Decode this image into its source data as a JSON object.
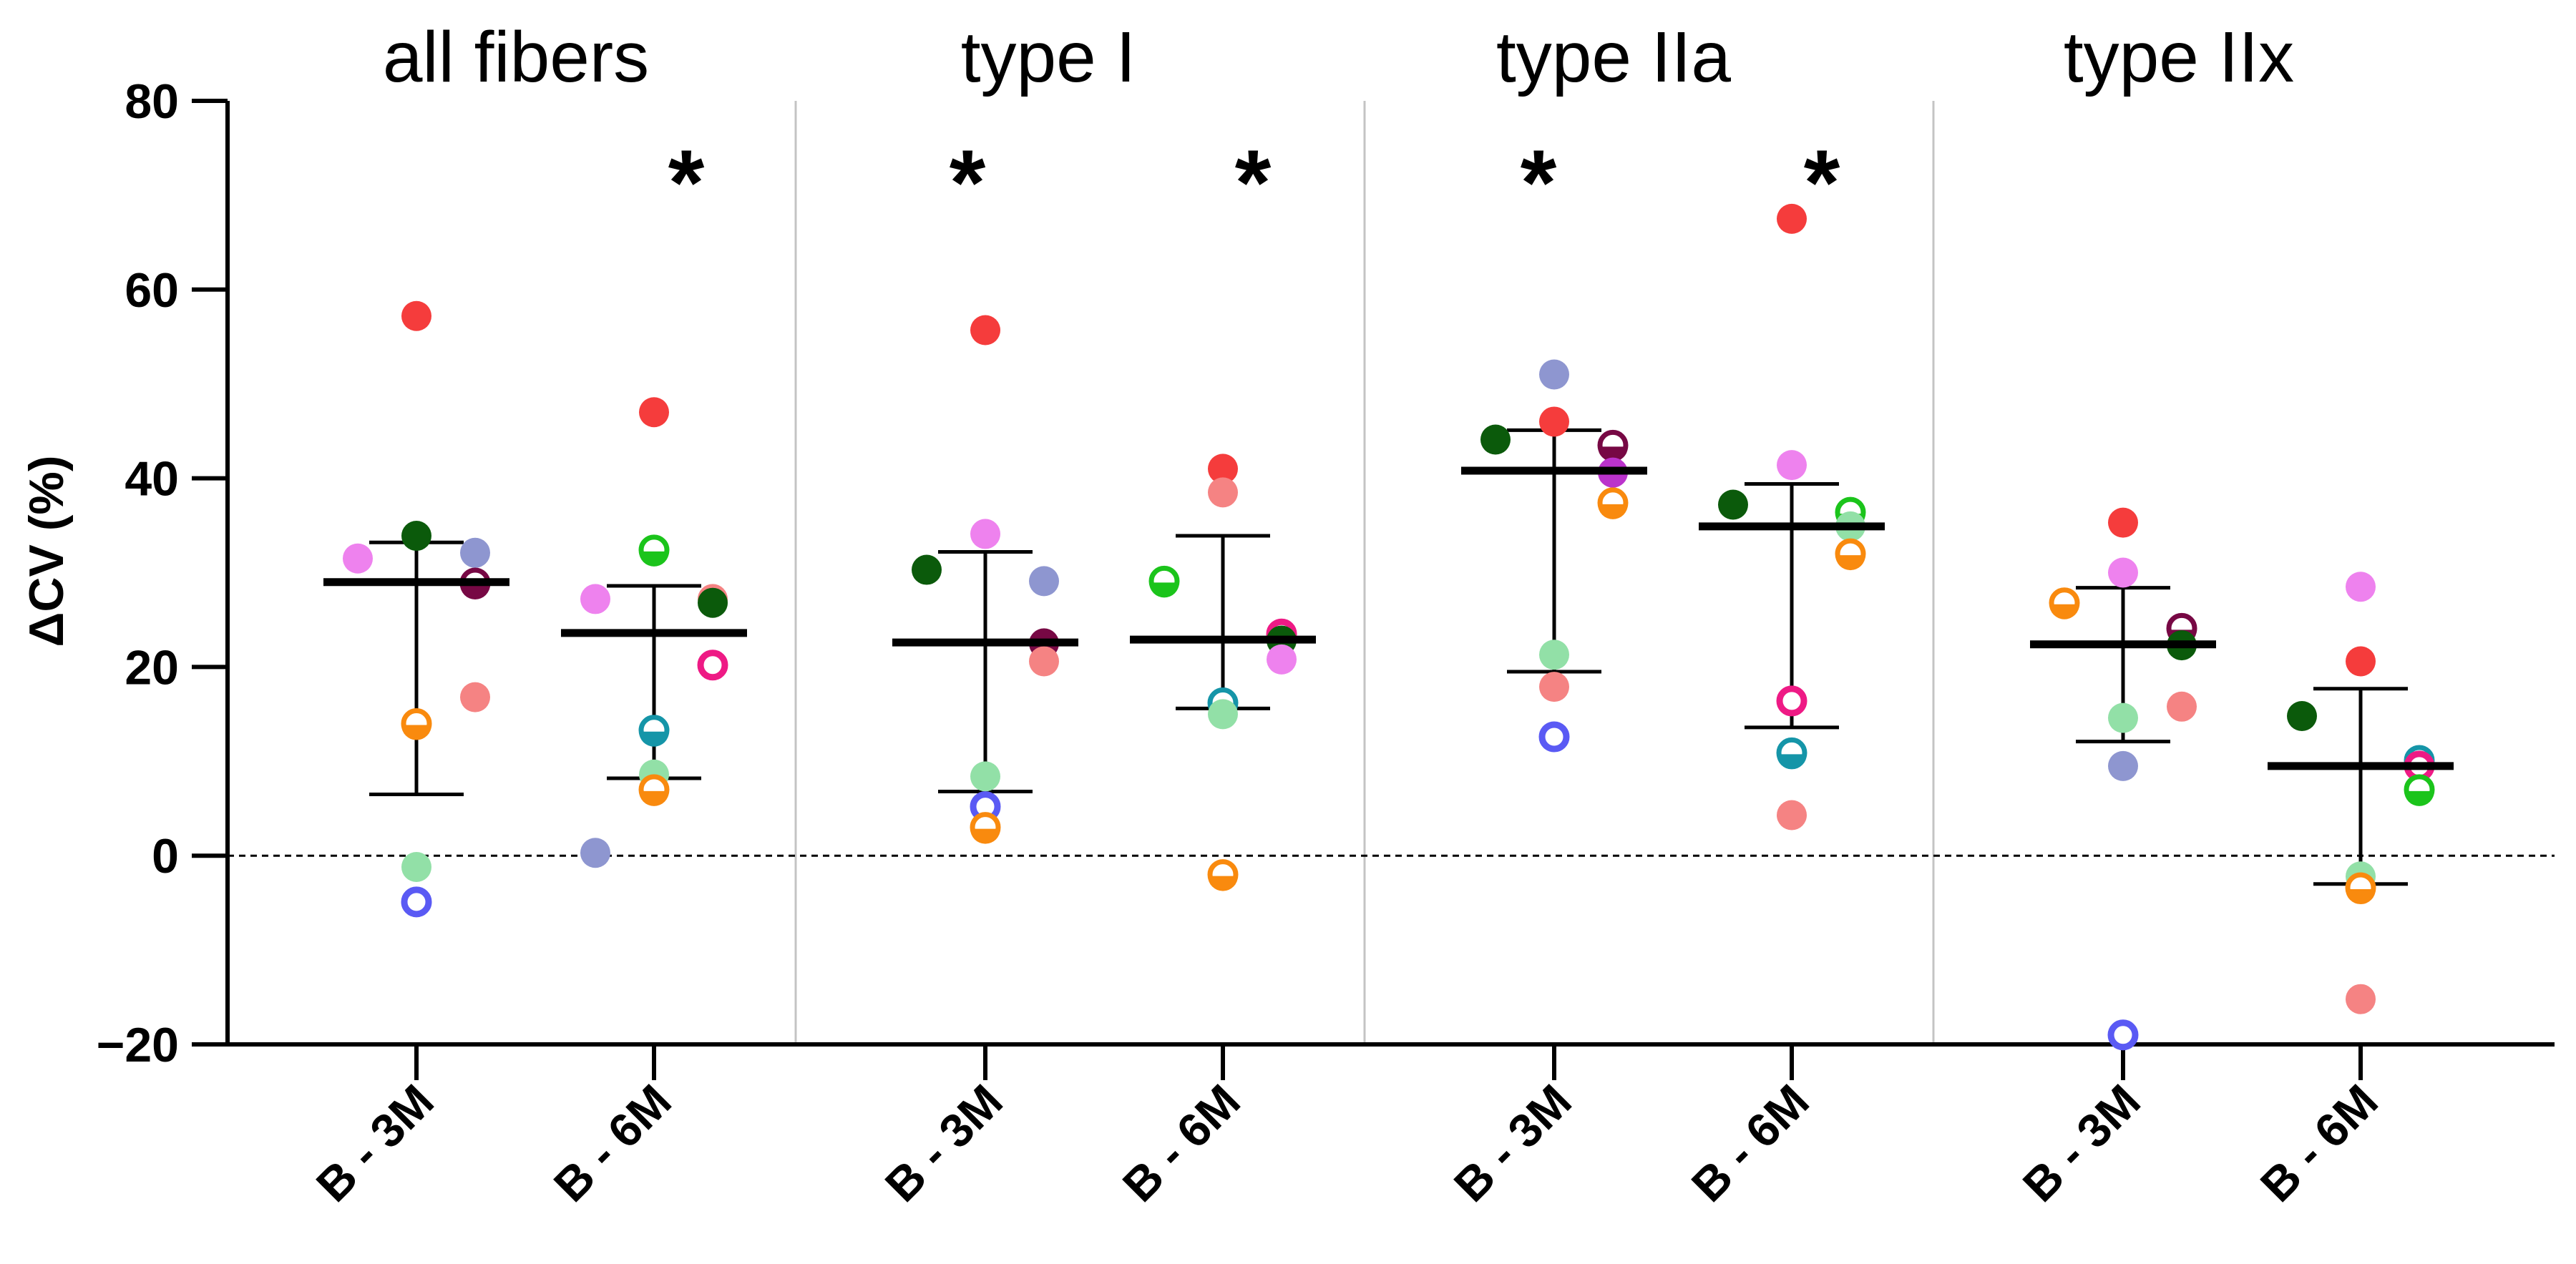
{
  "chart_data": {
    "type": "scatter",
    "ylabel": "ΔCV (%)",
    "ylim": [
      -20,
      80
    ],
    "yticks": [
      -20,
      0,
      20,
      40,
      60,
      80
    ],
    "ytick_labels": [
      "−20",
      "0",
      "20",
      "40",
      "60",
      "80"
    ],
    "reference_line": 0,
    "groups": [
      {
        "title": "all fibers",
        "comparisons": [
          {
            "label": "B - 3M",
            "significant": false,
            "mean": 29,
            "error_low": 6.5,
            "error_high": 33.2,
            "points": [
              {
                "y": 57.2,
                "color": "#f53c3c",
                "style": "filled"
              },
              {
                "y": 33.9,
                "color": "#0b5a0b",
                "style": "filled"
              },
              {
                "y": 31.5,
                "color": "#ee82ee",
                "style": "filled"
              },
              {
                "y": 32.1,
                "color": "#8e96d0",
                "style": "filled"
              },
              {
                "y": 28.9,
                "color": "#770844",
                "style": "half"
              },
              {
                "y": 16.8,
                "color": "#f58383",
                "style": "filled"
              },
              {
                "y": 14,
                "color": "#f98a0e",
                "style": "half"
              },
              {
                "y": -1.2,
                "color": "#92e0a7",
                "style": "filled"
              },
              {
                "y": -4.9,
                "color": "#5a5af4",
                "style": "ring"
              }
            ]
          },
          {
            "label": "B - 6M",
            "significant": true,
            "mean": 23.6,
            "error_low": 8.2,
            "error_high": 28.6,
            "points": [
              {
                "y": 47,
                "color": "#f53c3c",
                "style": "filled"
              },
              {
                "y": 32.4,
                "color": "#1bc41b",
                "style": "half"
              },
              {
                "y": 27.2,
                "color": "#ee82ee",
                "style": "filled"
              },
              {
                "y": 27.2,
                "color": "#f58383",
                "style": "filled"
              },
              {
                "y": 26.8,
                "color": "#0b5a0b",
                "style": "filled"
              },
              {
                "y": 20.2,
                "color": "#ee1a85",
                "style": "ring"
              },
              {
                "y": 13.3,
                "color": "#1595a8",
                "style": "half"
              },
              {
                "y": 8.6,
                "color": "#92e0a7",
                "style": "filled"
              },
              {
                "y": 7,
                "color": "#f98a0e",
                "style": "half"
              },
              {
                "y": 0.3,
                "color": "#8e96d0",
                "style": "filled"
              }
            ]
          }
        ]
      },
      {
        "title": "type I",
        "comparisons": [
          {
            "label": "B - 3M",
            "significant": true,
            "mean": 22.6,
            "error_low": 6.8,
            "error_high": 32.2,
            "points": [
              {
                "y": 55.7,
                "color": "#f53c3c",
                "style": "filled"
              },
              {
                "y": 34.1,
                "color": "#ee82ee",
                "style": "filled"
              },
              {
                "y": 30.3,
                "color": "#0b5a0b",
                "style": "filled"
              },
              {
                "y": 29.1,
                "color": "#8e96d0",
                "style": "filled"
              },
              {
                "y": 22.5,
                "color": "#770844",
                "style": "filled"
              },
              {
                "y": 20.6,
                "color": "#f58383",
                "style": "filled"
              },
              {
                "y": 8.4,
                "color": "#92e0a7",
                "style": "filled"
              },
              {
                "y": 5.2,
                "color": "#5a5af4",
                "style": "ring"
              },
              {
                "y": 3,
                "color": "#f98a0e",
                "style": "half"
              }
            ]
          },
          {
            "label": "B - 6M",
            "significant": true,
            "mean": 22.9,
            "error_low": 15.6,
            "error_high": 33.9,
            "points": [
              {
                "y": 41,
                "color": "#f53c3c",
                "style": "filled"
              },
              {
                "y": 38.5,
                "color": "#f58383",
                "style": "filled"
              },
              {
                "y": 29.1,
                "color": "#1bc41b",
                "style": "half"
              },
              {
                "y": 23.5,
                "color": "#ee1a85",
                "style": "ring"
              },
              {
                "y": 22.8,
                "color": "#0b5a0b",
                "style": "filled"
              },
              {
                "y": 20.8,
                "color": "#ee82ee",
                "style": "filled"
              },
              {
                "y": 16.2,
                "color": "#1595a8",
                "style": "half"
              },
              {
                "y": 15,
                "color": "#92e0a7",
                "style": "filled"
              },
              {
                "y": -2,
                "color": "#f98a0e",
                "style": "half"
              }
            ]
          }
        ]
      },
      {
        "title": "type IIa",
        "comparisons": [
          {
            "label": "B - 3M",
            "significant": true,
            "mean": 40.8,
            "error_low": 19.5,
            "error_high": 45.1,
            "points": [
              {
                "y": 51,
                "color": "#8e96d0",
                "style": "filled"
              },
              {
                "y": 46,
                "color": "#f53c3c",
                "style": "filled"
              },
              {
                "y": 44.1,
                "color": "#0b5a0b",
                "style": "filled"
              },
              {
                "y": 43.5,
                "color": "#770844",
                "style": "half"
              },
              {
                "y": 40.6,
                "color": "#bb33cc",
                "style": "filled"
              },
              {
                "y": 37.4,
                "color": "#f98a0e",
                "style": "half"
              },
              {
                "y": 21.3,
                "color": "#92e0a7",
                "style": "filled"
              },
              {
                "y": 17.9,
                "color": "#f58383",
                "style": "filled"
              },
              {
                "y": 12.6,
                "color": "#5a5af4",
                "style": "ring"
              }
            ]
          },
          {
            "label": "B - 6M",
            "significant": true,
            "mean": 34.9,
            "error_low": 13.6,
            "error_high": 39.4,
            "points": [
              {
                "y": 67.5,
                "color": "#f53c3c",
                "style": "filled"
              },
              {
                "y": 41.4,
                "color": "#ee82ee",
                "style": "filled"
              },
              {
                "y": 37.2,
                "color": "#0b5a0b",
                "style": "filled"
              },
              {
                "y": 36.4,
                "color": "#1bc41b",
                "style": "half"
              },
              {
                "y": 34.9,
                "color": "#92e0a7",
                "style": "filled"
              },
              {
                "y": 32,
                "color": "#f98a0e",
                "style": "half"
              },
              {
                "y": 16.4,
                "color": "#ee1a85",
                "style": "ring"
              },
              {
                "y": 10.9,
                "color": "#1595a8",
                "style": "half"
              },
              {
                "y": 4.3,
                "color": "#f58383",
                "style": "filled"
              }
            ]
          }
        ]
      },
      {
        "title": "type IIx",
        "comparisons": [
          {
            "label": "B - 3M",
            "significant": false,
            "mean": 22.4,
            "error_low": 12.1,
            "error_high": 28.4,
            "points": [
              {
                "y": 35.3,
                "color": "#f53c3c",
                "style": "filled"
              },
              {
                "y": 30,
                "color": "#ee82ee",
                "style": "filled"
              },
              {
                "y": 26.8,
                "color": "#f98a0e",
                "style": "half"
              },
              {
                "y": 24.1,
                "color": "#770844",
                "style": "half"
              },
              {
                "y": 22.3,
                "color": "#0b5a0b",
                "style": "filled"
              },
              {
                "y": 15.8,
                "color": "#f58383",
                "style": "filled"
              },
              {
                "y": 14.6,
                "color": "#92e0a7",
                "style": "filled"
              },
              {
                "y": 9.5,
                "color": "#8e96d0",
                "style": "filled"
              },
              {
                "y": -19,
                "color": "#5a5af4",
                "style": "ring"
              }
            ]
          },
          {
            "label": "B - 6M",
            "significant": false,
            "mean": 9.5,
            "error_low": -3,
            "error_high": 17.7,
            "points": [
              {
                "y": 28.5,
                "color": "#ee82ee",
                "style": "filled"
              },
              {
                "y": 20.6,
                "color": "#f53c3c",
                "style": "filled"
              },
              {
                "y": 14.8,
                "color": "#0b5a0b",
                "style": "filled"
              },
              {
                "y": 10.1,
                "color": "#1595a8",
                "style": "half"
              },
              {
                "y": 9.5,
                "color": "#ee1a85",
                "style": "ring"
              },
              {
                "y": 7,
                "color": "#1bc41b",
                "style": "half"
              },
              {
                "y": -2.2,
                "color": "#92e0a7",
                "style": "filled"
              },
              {
                "y": -3.4,
                "color": "#f98a0e",
                "style": "half"
              },
              {
                "y": -15.2,
                "color": "#f58383",
                "style": "filled"
              }
            ]
          }
        ]
      }
    ]
  }
}
